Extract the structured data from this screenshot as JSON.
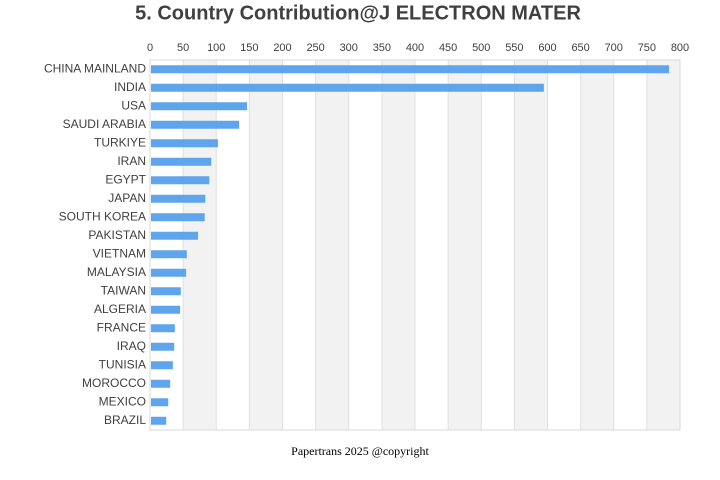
{
  "chart_data": {
    "type": "barh",
    "title": "5. Country Contribution@J ELECTRON MATER",
    "categories": [
      "CHINA MAINLAND",
      "INDIA",
      "USA",
      "SAUDI ARABIA",
      "TURKIYE",
      "IRAN",
      "EGYPT",
      "JAPAN",
      "SOUTH KOREA",
      "PAKISTAN",
      "VIETNAM",
      "MALAYSIA",
      "TAIWAN",
      "ALGERIA",
      "FRANCE",
      "IRAQ",
      "TUNISIA",
      "MOROCCO",
      "MEXICO",
      "BRAZIL"
    ],
    "values": [
      782,
      593,
      145,
      133,
      101,
      91,
      88,
      82,
      81,
      71,
      54,
      53,
      45,
      44,
      36,
      35,
      33,
      29,
      26,
      23
    ],
    "color": "#5ea5ee",
    "xlim": [
      0,
      800
    ],
    "xticks": [
      0,
      50,
      100,
      150,
      200,
      250,
      300,
      350,
      400,
      450,
      500,
      550,
      600,
      650,
      700,
      750,
      800
    ],
    "grid": true,
    "bands": true
  },
  "footer": "Papertrans 2025 @copyright"
}
